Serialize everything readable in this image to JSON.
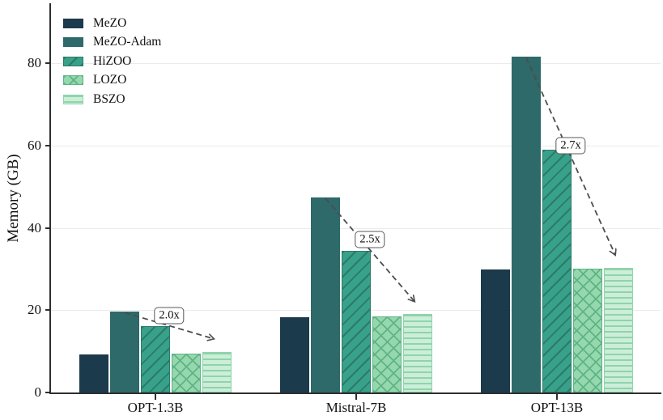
{
  "chart_data": {
    "type": "bar",
    "title": "",
    "xlabel": "",
    "ylabel": "Memory (GB)",
    "categories": [
      "OPT-1.3B",
      "Mistral-7B",
      "OPT-13B"
    ],
    "series": [
      {
        "name": "MeZO",
        "values": [
          9.2,
          18.3,
          29.9
        ],
        "color": "#1b3a4b",
        "edge": "#1b3a4b",
        "hatch": "none"
      },
      {
        "name": "MeZO-Adam",
        "values": [
          19.6,
          47.4,
          81.6
        ],
        "color": "#2d6a69",
        "edge": "#2d6a69",
        "hatch": "none"
      },
      {
        "name": "HiZOO",
        "values": [
          16.1,
          34.4,
          59.0
        ],
        "color": "#38a189",
        "edge": "#2c7a6a",
        "hatch": "diagonal"
      },
      {
        "name": "LOZO",
        "values": [
          9.4,
          18.5,
          30.1
        ],
        "color": "#95d8ad",
        "edge": "#5fb386",
        "hatch": "cross"
      },
      {
        "name": "BSZO",
        "values": [
          9.9,
          19.0,
          30.3
        ],
        "color": "#cceed8",
        "edge": "#8fd4ab",
        "hatch": "horizontal"
      }
    ],
    "ylim": [
      0,
      94
    ],
    "yticks": [
      0,
      20,
      40,
      60,
      80
    ],
    "grid": true,
    "legend_position": "upper left",
    "annotations": [
      {
        "category": "OPT-1.3B",
        "label": "2.0x",
        "from_series": "MeZO-Adam",
        "to_series": "BSZO"
      },
      {
        "category": "Mistral-7B",
        "label": "2.5x",
        "from_series": "MeZO-Adam",
        "to_series": "BSZO"
      },
      {
        "category": "OPT-13B",
        "label": "2.7x",
        "from_series": "MeZO-Adam",
        "to_series": "BSZO"
      }
    ],
    "colors": {
      "grid": "#ebebeb",
      "spine": "#2e2e2e",
      "arrow": "#4d4d4d",
      "annotation_border": "#595959",
      "text": "#111111"
    }
  }
}
